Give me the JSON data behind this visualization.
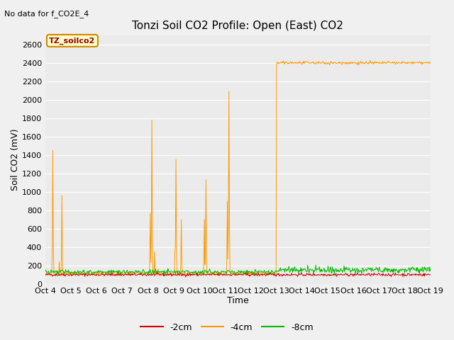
{
  "title": "Tonzi Soil CO2 Profile: Open (East) CO2",
  "top_left_note": "No data for f_CO2E_4",
  "xlabel": "Time",
  "ylabel": "Soil CO2 (mV)",
  "ylim": [
    0,
    2700
  ],
  "yticks": [
    0,
    200,
    400,
    600,
    800,
    1000,
    1200,
    1400,
    1600,
    1800,
    2000,
    2200,
    2400,
    2600
  ],
  "xtick_labels": [
    "Oct 4",
    "Oct 5",
    "Oct 6",
    "Oct 7",
    "Oct 8",
    "Oct 9",
    "Oct 10",
    "Oct 11",
    "Oct 12",
    "Oct 13",
    "Oct 14",
    "Oct 15",
    "Oct 16",
    "Oct 17",
    "Oct 18",
    "Oct 19"
  ],
  "legend_label": "TZ_soilco2",
  "line_colors": {
    "minus2cm": "#cc0000",
    "minus4cm": "#ff9900",
    "minus8cm": "#00bb00"
  },
  "legend_labels": [
    "-2cm",
    "-4cm",
    "-8cm"
  ],
  "fig_bg_color": "#f0f0f0",
  "plot_bg_color": "#ebebeb",
  "grid_color": "#ffffff",
  "title_fontsize": 11,
  "axis_fontsize": 9,
  "tick_fontsize": 8,
  "note_fontsize": 8
}
